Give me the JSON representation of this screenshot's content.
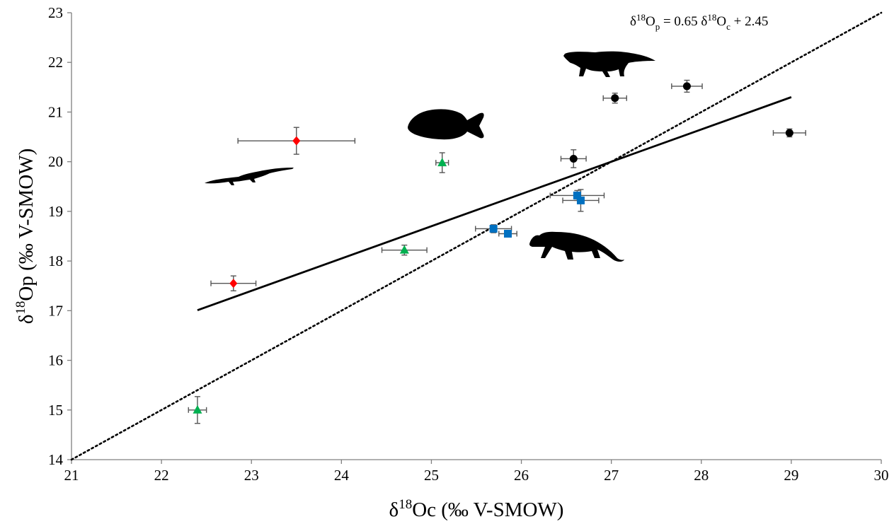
{
  "chart_data": {
    "type": "scatter",
    "title": "",
    "xlabel_main": "δ",
    "xlabel_sup": "18",
    "xlabel_rest": "Oc (‰ V-SMOW)",
    "ylabel_main": "δ",
    "ylabel_sup": "18",
    "ylabel_rest": "Op (‰ V-SMOW)",
    "xlim": [
      21,
      30
    ],
    "ylim": [
      14,
      23
    ],
    "xticks": [
      "21",
      "22",
      "23",
      "24",
      "25",
      "26",
      "27",
      "28",
      "29",
      "30"
    ],
    "yticks": [
      "14",
      "15",
      "16",
      "17",
      "18",
      "19",
      "20",
      "21",
      "22",
      "23"
    ],
    "grid": false,
    "legend": "none",
    "equation": {
      "p1": "δ",
      "s1": "18",
      "p2": "O",
      "b1": "p",
      "p3": " = 0.65 δ",
      "s2": "18",
      "p4": "O",
      "b2": "c",
      "p5": " + 2.45"
    },
    "regression": {
      "slope": 0.65,
      "intercept": 2.45,
      "x_range": [
        22.4,
        29.0
      ],
      "color": "#000000"
    },
    "reference_line": {
      "type": "dotted",
      "from": [
        21,
        14
      ],
      "to": [
        30,
        23
      ],
      "color": "#000000"
    },
    "series": [
      {
        "marker": "diamond",
        "color": "#ff0000",
        "points": [
          {
            "x": 23.5,
            "y": 20.42,
            "xerr": 0.65,
            "yerr": 0.27
          },
          {
            "x": 22.8,
            "y": 17.55,
            "xerr": 0.25,
            "yerr": 0.15
          }
        ]
      },
      {
        "marker": "triangle",
        "color": "#00b050",
        "points": [
          {
            "x": 25.12,
            "y": 19.98,
            "xerr": 0.07,
            "yerr": 0.2
          },
          {
            "x": 24.7,
            "y": 18.22,
            "xerr": 0.25,
            "yerr": 0.1
          },
          {
            "x": 22.4,
            "y": 15.0,
            "xerr": 0.1,
            "yerr": 0.27
          }
        ]
      },
      {
        "marker": "square",
        "color": "#0070c0",
        "points": [
          {
            "x": 26.62,
            "y": 19.32,
            "xerr": 0.3,
            "yerr": 0.1
          },
          {
            "x": 26.66,
            "y": 19.22,
            "xerr": 0.2,
            "yerr": 0.22
          },
          {
            "x": 25.69,
            "y": 18.65,
            "xerr": 0.2,
            "yerr": 0.08
          },
          {
            "x": 25.85,
            "y": 18.55,
            "xerr": 0.1,
            "yerr": 0.05
          }
        ]
      },
      {
        "marker": "circle",
        "color": "#000000",
        "points": [
          {
            "x": 27.04,
            "y": 21.28,
            "xerr": 0.13,
            "yerr": 0.1
          },
          {
            "x": 27.84,
            "y": 21.52,
            "xerr": 0.17,
            "yerr": 0.12
          },
          {
            "x": 28.98,
            "y": 20.58,
            "xerr": 0.18,
            "yerr": 0.08
          },
          {
            "x": 26.58,
            "y": 20.06,
            "xerr": 0.14,
            "yerr": 0.18
          }
        ]
      }
    ]
  },
  "silhouettes": [
    {
      "name": "crocodile-silhouette-icon",
      "depicts": "crocodile"
    },
    {
      "name": "fish-silhouette-icon",
      "depicts": "fish"
    },
    {
      "name": "choristodere-silhouette-icon",
      "depicts": "long-snouted reptile"
    },
    {
      "name": "mammal-silhouette-icon",
      "depicts": "mammal"
    }
  ]
}
